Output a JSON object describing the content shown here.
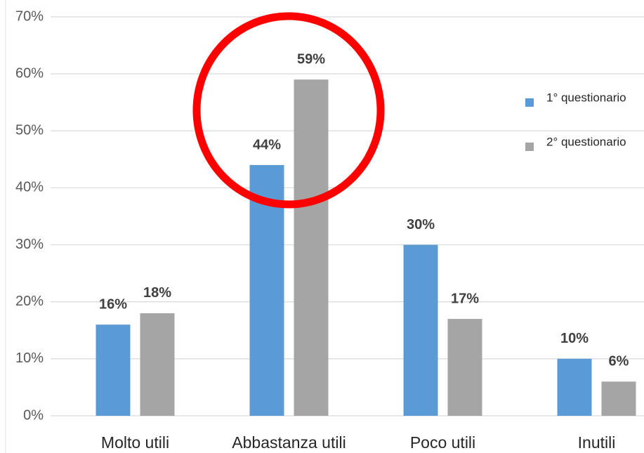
{
  "chart_data": {
    "type": "bar",
    "categories": [
      "Molto utili",
      "Abbastanza utili",
      "Poco utili",
      "Inutili"
    ],
    "series": [
      {
        "name": "1° questionario",
        "color": "#5b9bd5",
        "values": [
          16,
          44,
          30,
          10
        ],
        "value_labels": [
          "16%",
          "44%",
          "30%",
          "10%"
        ]
      },
      {
        "name": "2° questionario",
        "color": "#a5a5a5",
        "values": [
          18,
          59,
          17,
          6
        ],
        "value_labels": [
          "18%",
          "59%",
          "17%",
          "6%"
        ]
      }
    ],
    "ylim": [
      0,
      70
    ],
    "yticks": [
      {
        "value": 0,
        "label": "0%"
      },
      {
        "value": 10,
        "label": "10%"
      },
      {
        "value": 20,
        "label": "20%"
      },
      {
        "value": 30,
        "label": "30%"
      },
      {
        "value": 40,
        "label": "40%"
      },
      {
        "value": 50,
        "label": "50%"
      },
      {
        "value": 60,
        "label": "60%"
      },
      {
        "value": 70,
        "label": "70%"
      }
    ],
    "grid": true,
    "legend": "right"
  }
}
